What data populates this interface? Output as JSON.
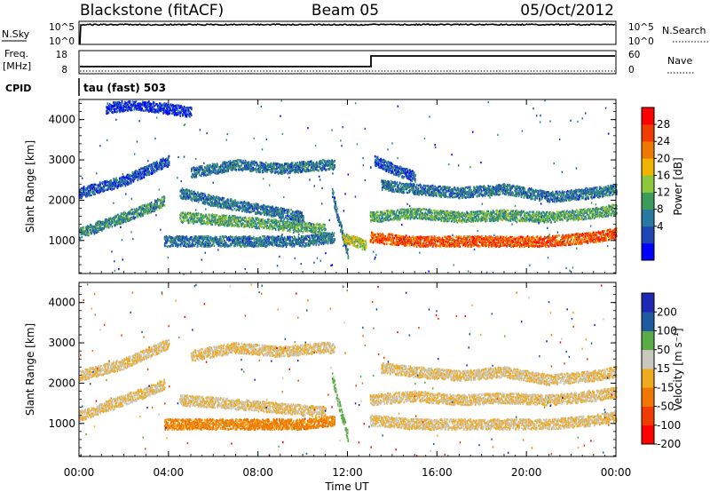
{
  "header": {
    "station": "Blackstone (fitACF)",
    "beam": "Beam 05",
    "date": "05/Oct/2012"
  },
  "top_panels": {
    "nsky_label": "N.Sky",
    "nsearch_label": "N.Search",
    "noise_ticks_left": [
      "10^5",
      "10^0"
    ],
    "noise_ticks_right": [
      "10^5",
      "10^0"
    ],
    "freq_label_1": "Freq.",
    "freq_label_2": "[MHz]",
    "freq_ticks": [
      "18",
      "8"
    ],
    "nave_label": "Nave",
    "nave_ticks": [
      "60",
      "0"
    ],
    "cpid_label": "CPID",
    "cpid_value": "tau (fast) 503"
  },
  "panels": {
    "power": {
      "ylabel": "Slant Range [km]",
      "yticks": [
        "4000",
        "3000",
        "2000",
        "1000"
      ],
      "cbar_label": "Power [dB]",
      "cbar_ticks": [
        "28",
        "24",
        "20",
        "16",
        "12",
        "8",
        "4"
      ]
    },
    "velocity": {
      "ylabel": "Slant Range [km]",
      "yticks": [
        "4000",
        "3000",
        "2000",
        "1000"
      ],
      "cbar_label": "Velocity [m s⁻¹]",
      "cbar_ticks": [
        "200",
        "100",
        "50",
        "15",
        "-15",
        "-50",
        "-100",
        "-200"
      ]
    }
  },
  "xaxis": {
    "label": "Time UT",
    "ticks": [
      "00:00",
      "04:00",
      "08:00",
      "12:00",
      "16:00",
      "20:00",
      "00:00"
    ]
  },
  "colors": {
    "power_scale": [
      "#0000ff",
      "#1e46b4",
      "#2878a0",
      "#3c9b5a",
      "#8cc83c",
      "#f0b400",
      "#f07800",
      "#f03c00",
      "#ff0000"
    ],
    "velocity_scale": [
      "#1e28b4",
      "#1e5aa0",
      "#5aaa46",
      "#c8c8be",
      "#f0aa1e",
      "#f07800",
      "#f03c00",
      "#ff0000"
    ]
  },
  "chart_data": [
    {
      "type": "line",
      "title": "Blackstone (fitACF) Beam 05 05/Oct/2012",
      "xlabel": "Time UT",
      "ylabel": "N.Sky",
      "xlim": [
        0,
        24
      ],
      "ylim": [
        0,
        100000
      ],
      "yscale": "log",
      "series": [
        {
          "name": "N.Sky",
          "x": [
            0,
            0.1,
            24
          ],
          "y": [
            1,
            20000,
            20000
          ]
        }
      ]
    },
    {
      "type": "line",
      "xlabel": "Time UT",
      "ylabel": "Freq. [MHz]",
      "xlim": [
        0,
        24
      ],
      "ylim": [
        8,
        18
      ],
      "series": [
        {
          "name": "Freq.",
          "x": [
            0,
            12.9,
            12.9,
            24
          ],
          "y": [
            8.3,
            8.3,
            16,
            16
          ]
        }
      ]
    },
    {
      "type": "heatmap",
      "xlabel": "Time UT",
      "ylabel": "Slant Range [km]",
      "xlim": [
        0,
        24
      ],
      "ylim": [
        180,
        4500
      ],
      "colorbar_label": "Power [dB]",
      "colorbar_range": [
        0,
        30
      ],
      "colorbar_ticks": [
        4,
        8,
        12,
        16,
        20,
        24,
        28
      ],
      "bands": [
        {
          "x": [
            0.0,
            1.0,
            2.0,
            3.0,
            3.8
          ],
          "range_km": [
            1200,
            1400,
            1600,
            1800,
            2000
          ],
          "power_db": 10
        },
        {
          "x": [
            0.0,
            2.0,
            4.0
          ],
          "range_km": [
            2200,
            2500,
            3000
          ],
          "power_db": 6
        },
        {
          "x": [
            1.2,
            2.5,
            3.8,
            5.0
          ],
          "range_km": [
            4300,
            4400,
            4300,
            4200
          ],
          "power_db": 4
        },
        {
          "x": [
            3.8,
            6.0,
            8.0,
            10.0,
            11.4
          ],
          "range_km": [
            1000,
            1000,
            1000,
            1000,
            1100
          ],
          "power_db": 8
        },
        {
          "x": [
            5.0,
            7.0,
            9.0,
            11.0,
            11.4
          ],
          "range_km": [
            2700,
            2900,
            2800,
            2900,
            2900
          ],
          "power_db": 8
        },
        {
          "x": [
            4.5,
            7.0,
            9.0,
            11.0
          ],
          "range_km": [
            1600,
            1500,
            1400,
            1300
          ],
          "power_db": 12
        },
        {
          "x": [
            4.5,
            6.0,
            8.0,
            10.0
          ],
          "range_km": [
            2200,
            2000,
            1800,
            1600
          ],
          "power_db": 8
        },
        {
          "x": [
            11.3,
            11.6,
            12.0
          ],
          "range_km": [
            2200,
            1500,
            700
          ],
          "power_db": 8
        },
        {
          "x": [
            11.8,
            12.3,
            12.8
          ],
          "range_km": [
            1100,
            1000,
            900
          ],
          "power_db": 16
        },
        {
          "x": [
            13.0,
            15.0,
            17.0,
            19.0,
            21.0,
            23.0,
            24.0
          ],
          "range_km": [
            1100,
            1000,
            1000,
            1000,
            1000,
            1100,
            1200
          ],
          "power_db": 24
        },
        {
          "x": [
            13.0,
            15.0,
            17.0,
            19.0,
            21.0,
            23.0,
            24.0
          ],
          "range_km": [
            1600,
            1700,
            1600,
            1650,
            1600,
            1700,
            1800
          ],
          "power_db": 12
        },
        {
          "x": [
            13.5,
            15.0,
            17.0,
            19.0,
            21.0,
            23.0,
            24.0
          ],
          "range_km": [
            2400,
            2300,
            2200,
            2300,
            2100,
            2200,
            2300
          ],
          "power_db": 8
        },
        {
          "x": [
            13.2,
            14.0,
            15.0
          ],
          "range_km": [
            3000,
            2800,
            2600
          ],
          "power_db": 6
        }
      ]
    },
    {
      "type": "heatmap",
      "xlabel": "Time UT",
      "ylabel": "Slant Range [km]",
      "xlim": [
        0,
        24
      ],
      "ylim": [
        180,
        4500
      ],
      "colorbar_label": "Velocity [m s⁻¹]",
      "colorbar_range": [
        -250,
        250
      ],
      "colorbar_ticks": [
        200,
        100,
        50,
        15,
        -15,
        -50,
        -100,
        -200
      ],
      "bands": [
        {
          "x": [
            0.0,
            1.0,
            2.0,
            3.0,
            3.8
          ],
          "range_km": [
            1200,
            1400,
            1600,
            1800,
            2000
          ],
          "velocity_ms": 0
        },
        {
          "x": [
            0.0,
            2.0,
            4.0
          ],
          "range_km": [
            2200,
            2500,
            3000
          ],
          "velocity_ms": 0
        },
        {
          "x": [
            3.8,
            6.0,
            8.0,
            10.0,
            11.4
          ],
          "range_km": [
            1000,
            1000,
            1000,
            1000,
            1100
          ],
          "velocity_ms": -40
        },
        {
          "x": [
            5.0,
            7.0,
            9.0,
            11.0,
            11.4
          ],
          "range_km": [
            2700,
            2900,
            2800,
            2900,
            2900
          ],
          "velocity_ms": 0
        },
        {
          "x": [
            4.5,
            7.0,
            9.0,
            11.0
          ],
          "range_km": [
            1600,
            1500,
            1400,
            1300
          ],
          "velocity_ms": 0
        },
        {
          "x": [
            11.3,
            11.6,
            12.0
          ],
          "range_km": [
            2200,
            1500,
            700
          ],
          "velocity_ms": 40
        },
        {
          "x": [
            13.0,
            15.0,
            17.0,
            19.0,
            21.0,
            23.0,
            24.0
          ],
          "range_km": [
            1100,
            1000,
            1000,
            1000,
            1000,
            1100,
            1200
          ],
          "velocity_ms": 0
        },
        {
          "x": [
            13.0,
            15.0,
            17.0,
            19.0,
            21.0,
            23.0,
            24.0
          ],
          "range_km": [
            1600,
            1700,
            1600,
            1650,
            1600,
            1700,
            1800
          ],
          "velocity_ms": 0
        },
        {
          "x": [
            13.5,
            15.0,
            17.0,
            19.0,
            21.0,
            23.0,
            24.0
          ],
          "range_km": [
            2400,
            2300,
            2200,
            2300,
            2100,
            2200,
            2300
          ],
          "velocity_ms": 0
        }
      ]
    }
  ]
}
